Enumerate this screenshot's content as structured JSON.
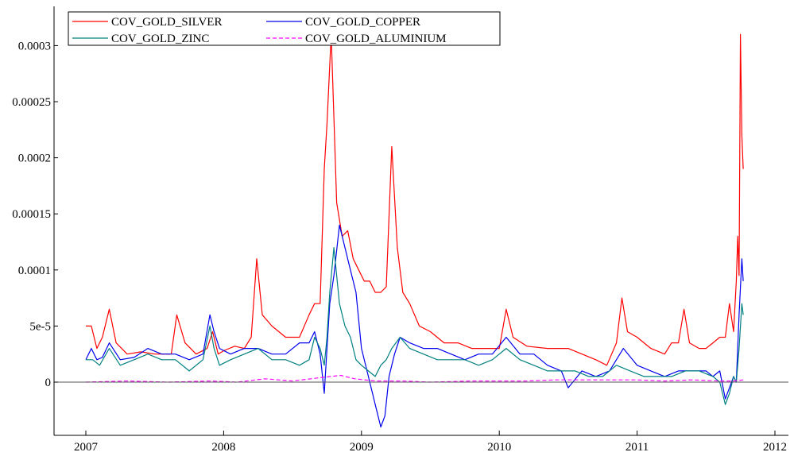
{
  "chart_data": {
    "type": "line",
    "title": "",
    "xlabel": "",
    "ylabel": "",
    "xlim": [
      2007.0,
      2012.0
    ],
    "ylim": [
      -4.6e-05,
      0.000335
    ],
    "x_ticks": [
      {
        "value": 2007,
        "label": "2007"
      },
      {
        "value": 2008,
        "label": "2008"
      },
      {
        "value": 2009,
        "label": "2009"
      },
      {
        "value": 2010,
        "label": "2010"
      },
      {
        "value": 2011,
        "label": "2011"
      },
      {
        "value": 2012,
        "label": "2012"
      }
    ],
    "y_ticks": [
      {
        "value": 0,
        "label": "0"
      },
      {
        "value": 5e-05,
        "label": "5e-5"
      },
      {
        "value": 0.0001,
        "label": "0.0001"
      },
      {
        "value": 0.00015,
        "label": "0.00015"
      },
      {
        "value": 0.0002,
        "label": "0.0002"
      },
      {
        "value": 0.00025,
        "label": "0.00025"
      },
      {
        "value": 0.0003,
        "label": "0.0003"
      }
    ],
    "zero_line": true,
    "grid": false,
    "legend_position": "top-left",
    "series": [
      {
        "name": "COV_GOLD_SILVER",
        "color": "#ff0000",
        "dash": "solid",
        "x": [
          2007.0,
          2007.04,
          2007.08,
          2007.12,
          2007.17,
          2007.22,
          2007.3,
          2007.4,
          2007.5,
          2007.58,
          2007.62,
          2007.66,
          2007.72,
          2007.8,
          2007.88,
          2007.92,
          2007.96,
          2008.0,
          2008.08,
          2008.15,
          2008.2,
          2008.24,
          2008.28,
          2008.35,
          2008.45,
          2008.55,
          2008.62,
          2008.66,
          2008.7,
          2008.73,
          2008.75,
          2008.78,
          2008.82,
          2008.86,
          2008.9,
          2008.94,
          2008.98,
          2009.02,
          2009.06,
          2009.1,
          2009.14,
          2009.18,
          2009.22,
          2009.26,
          2009.3,
          2009.35,
          2009.42,
          2009.5,
          2009.6,
          2009.7,
          2009.8,
          2009.9,
          2010.0,
          2010.05,
          2010.1,
          2010.2,
          2010.35,
          2010.5,
          2010.6,
          2010.7,
          2010.78,
          2010.85,
          2010.89,
          2010.93,
          2011.0,
          2011.1,
          2011.2,
          2011.25,
          2011.3,
          2011.34,
          2011.38,
          2011.45,
          2011.5,
          2011.55,
          2011.6,
          2011.64,
          2011.67,
          2011.7,
          2011.72,
          2011.73,
          2011.74,
          2011.75,
          2011.76,
          2011.77
        ],
        "values": [
          5e-05,
          5e-05,
          3e-05,
          4e-05,
          6.5e-05,
          3.5e-05,
          2.5e-05,
          2.7e-05,
          2.5e-05,
          2.5e-05,
          2.5e-05,
          6e-05,
          3.5e-05,
          2.5e-05,
          3e-05,
          4.5e-05,
          2.5e-05,
          2.8e-05,
          3.2e-05,
          3e-05,
          4e-05,
          0.00011,
          6e-05,
          5e-05,
          4e-05,
          4e-05,
          6e-05,
          7e-05,
          7e-05,
          0.00019,
          0.00023,
          0.00031,
          0.00016,
          0.00013,
          0.000135,
          0.00011,
          0.0001,
          9e-05,
          9e-05,
          8e-05,
          8e-05,
          8.5e-05,
          0.00021,
          0.00012,
          8e-05,
          7e-05,
          5e-05,
          4.5e-05,
          3.5e-05,
          3.5e-05,
          3e-05,
          3e-05,
          3e-05,
          6.5e-05,
          4e-05,
          3.2e-05,
          3e-05,
          3e-05,
          2.5e-05,
          2e-05,
          1.5e-05,
          3.5e-05,
          7.5e-05,
          4.5e-05,
          4e-05,
          3e-05,
          2.5e-05,
          3.5e-05,
          3.5e-05,
          6.5e-05,
          3.5e-05,
          3e-05,
          3e-05,
          3.5e-05,
          4e-05,
          4e-05,
          7e-05,
          4.5e-05,
          9e-05,
          0.00013,
          9.5e-05,
          0.00031,
          0.00022,
          0.00019
        ]
      },
      {
        "name": "COV_GOLD_COPPER",
        "color": "#0000ee",
        "dash": "solid",
        "x": [
          2007.0,
          2007.04,
          2007.08,
          2007.12,
          2007.17,
          2007.25,
          2007.35,
          2007.45,
          2007.55,
          2007.65,
          2007.75,
          2007.85,
          2007.9,
          2007.93,
          2007.97,
          2008.05,
          2008.15,
          2008.25,
          2008.35,
          2008.45,
          2008.55,
          2008.62,
          2008.66,
          2008.7,
          2008.73,
          2008.75,
          2008.77,
          2008.8,
          2008.84,
          2008.88,
          2008.92,
          2008.96,
          2009.0,
          2009.05,
          2009.1,
          2009.14,
          2009.17,
          2009.2,
          2009.24,
          2009.28,
          2009.35,
          2009.45,
          2009.55,
          2009.65,
          2009.75,
          2009.85,
          2009.95,
          2010.05,
          2010.15,
          2010.25,
          2010.35,
          2010.45,
          2010.5,
          2010.6,
          2010.7,
          2010.8,
          2010.9,
          2011.0,
          2011.1,
          2011.2,
          2011.3,
          2011.4,
          2011.5,
          2011.55,
          2011.6,
          2011.64,
          2011.67,
          2011.7,
          2011.72,
          2011.74,
          2011.76,
          2011.77
        ],
        "values": [
          2e-05,
          3e-05,
          2e-05,
          2.2e-05,
          3.5e-05,
          2e-05,
          2.2e-05,
          3e-05,
          2.5e-05,
          2.5e-05,
          2e-05,
          2.5e-05,
          6e-05,
          4.5e-05,
          3e-05,
          2.5e-05,
          3e-05,
          3e-05,
          2.5e-05,
          2.5e-05,
          3.5e-05,
          3.5e-05,
          4.5e-05,
          2.5e-05,
          -1e-05,
          3e-05,
          7e-05,
          9.5e-05,
          0.00014,
          0.00012,
          0.0001,
          8e-05,
          3e-05,
          5e-06,
          -2e-05,
          -4e-05,
          -3e-05,
          5e-06,
          2.5e-05,
          4e-05,
          3.5e-05,
          3e-05,
          3e-05,
          2.5e-05,
          2e-05,
          2.5e-05,
          2.5e-05,
          4e-05,
          2.5e-05,
          2.5e-05,
          1.5e-05,
          1e-05,
          -5e-06,
          1e-05,
          5e-06,
          1e-05,
          3e-05,
          1.5e-05,
          1e-05,
          5e-06,
          1e-05,
          1e-05,
          1e-05,
          5e-06,
          1e-05,
          -1.5e-05,
          -5e-06,
          5e-06,
          0.0,
          6e-05,
          0.00011,
          9e-05
        ]
      },
      {
        "name": "COV_GOLD_ZINC",
        "color": "#008080",
        "dash": "solid",
        "x": [
          2007.0,
          2007.05,
          2007.1,
          2007.17,
          2007.25,
          2007.35,
          2007.45,
          2007.55,
          2007.65,
          2007.75,
          2007.85,
          2007.9,
          2007.93,
          2007.97,
          2008.05,
          2008.15,
          2008.25,
          2008.35,
          2008.45,
          2008.55,
          2008.62,
          2008.66,
          2008.7,
          2008.73,
          2008.75,
          2008.77,
          2008.8,
          2008.84,
          2008.88,
          2008.92,
          2008.96,
          2009.0,
          2009.05,
          2009.1,
          2009.14,
          2009.18,
          2009.22,
          2009.28,
          2009.35,
          2009.45,
          2009.55,
          2009.65,
          2009.75,
          2009.85,
          2009.95,
          2010.05,
          2010.15,
          2010.25,
          2010.35,
          2010.45,
          2010.55,
          2010.65,
          2010.75,
          2010.85,
          2010.95,
          2011.05,
          2011.15,
          2011.25,
          2011.35,
          2011.45,
          2011.55,
          2011.6,
          2011.64,
          2011.67,
          2011.7,
          2011.72,
          2011.74,
          2011.76,
          2011.77
        ],
        "values": [
          2e-05,
          2e-05,
          1.5e-05,
          3e-05,
          1.5e-05,
          2e-05,
          2.5e-05,
          2e-05,
          2e-05,
          1e-05,
          2e-05,
          5e-05,
          3e-05,
          1.5e-05,
          2e-05,
          2.5e-05,
          3e-05,
          2e-05,
          2e-05,
          1.5e-05,
          2e-05,
          4e-05,
          3e-05,
          1.5e-05,
          4e-05,
          8e-05,
          0.00012,
          7e-05,
          5e-05,
          4e-05,
          2e-05,
          1.5e-05,
          1e-05,
          5e-06,
          1.5e-05,
          2e-05,
          3e-05,
          4e-05,
          3e-05,
          2.5e-05,
          2e-05,
          2e-05,
          2e-05,
          1.5e-05,
          2e-05,
          3e-05,
          2e-05,
          1.5e-05,
          1e-05,
          1e-05,
          1e-05,
          5e-06,
          5e-06,
          1.5e-05,
          1e-05,
          5e-06,
          5e-06,
          5e-06,
          1e-05,
          1e-05,
          5e-06,
          0.0,
          -2e-05,
          -1e-05,
          5e-06,
          0.0,
          3e-05,
          7e-05,
          6e-05
        ]
      },
      {
        "name": "COV_GOLD_ALUMINIUM",
        "color": "#ff00ff",
        "dash": "dashed",
        "x": [
          2007.0,
          2007.3,
          2007.6,
          2007.9,
          2008.1,
          2008.3,
          2008.5,
          2008.7,
          2008.85,
          2008.95,
          2009.1,
          2009.3,
          2009.5,
          2009.8,
          2010.0,
          2010.2,
          2010.4,
          2010.6,
          2010.8,
          2011.0,
          2011.2,
          2011.4,
          2011.6,
          2011.7,
          2011.77
        ],
        "values": [
          0.0,
          1e-06,
          0.0,
          1e-06,
          0.0,
          3e-06,
          1e-06,
          4e-06,
          6e-06,
          3e-06,
          1e-06,
          1e-06,
          0.0,
          1e-06,
          1e-06,
          1e-06,
          2e-06,
          2e-06,
          2e-06,
          2e-06,
          1e-06,
          2e-06,
          1e-06,
          1e-06,
          2e-06
        ]
      }
    ]
  }
}
